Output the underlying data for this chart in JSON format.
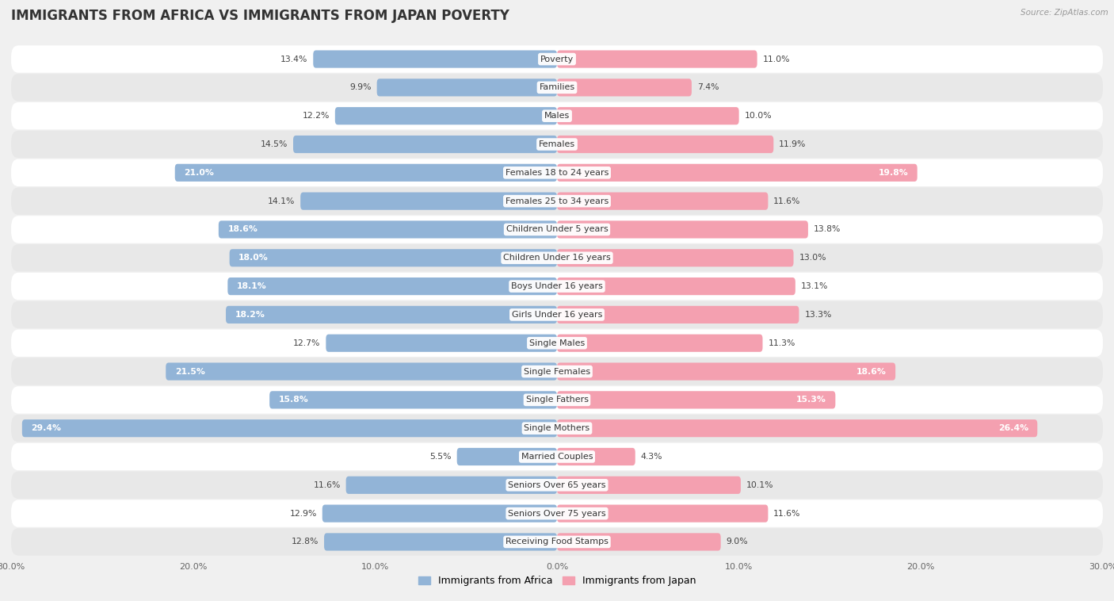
{
  "title": "IMMIGRANTS FROM AFRICA VS IMMIGRANTS FROM JAPAN POVERTY",
  "source": "Source: ZipAtlas.com",
  "categories": [
    "Poverty",
    "Families",
    "Males",
    "Females",
    "Females 18 to 24 years",
    "Females 25 to 34 years",
    "Children Under 5 years",
    "Children Under 16 years",
    "Boys Under 16 years",
    "Girls Under 16 years",
    "Single Males",
    "Single Females",
    "Single Fathers",
    "Single Mothers",
    "Married Couples",
    "Seniors Over 65 years",
    "Seniors Over 75 years",
    "Receiving Food Stamps"
  ],
  "africa_values": [
    13.4,
    9.9,
    12.2,
    14.5,
    21.0,
    14.1,
    18.6,
    18.0,
    18.1,
    18.2,
    12.7,
    21.5,
    15.8,
    29.4,
    5.5,
    11.6,
    12.9,
    12.8
  ],
  "japan_values": [
    11.0,
    7.4,
    10.0,
    11.9,
    19.8,
    11.6,
    13.8,
    13.0,
    13.1,
    13.3,
    11.3,
    18.6,
    15.3,
    26.4,
    4.3,
    10.1,
    11.6,
    9.0
  ],
  "africa_color": "#92b4d7",
  "japan_color": "#f4a0b0",
  "africa_label": "Immigrants from Africa",
  "japan_label": "Immigrants from Japan",
  "xlim": 30.0,
  "bar_height": 0.62,
  "bg_color": "#f0f0f0",
  "row_colors": [
    "#ffffff",
    "#e8e8e8"
  ],
  "title_fontsize": 12,
  "label_fontsize": 8.0,
  "value_fontsize": 7.8,
  "axis_label_fontsize": 8.0,
  "africa_white_threshold": 15.0,
  "japan_white_threshold": 15.0
}
